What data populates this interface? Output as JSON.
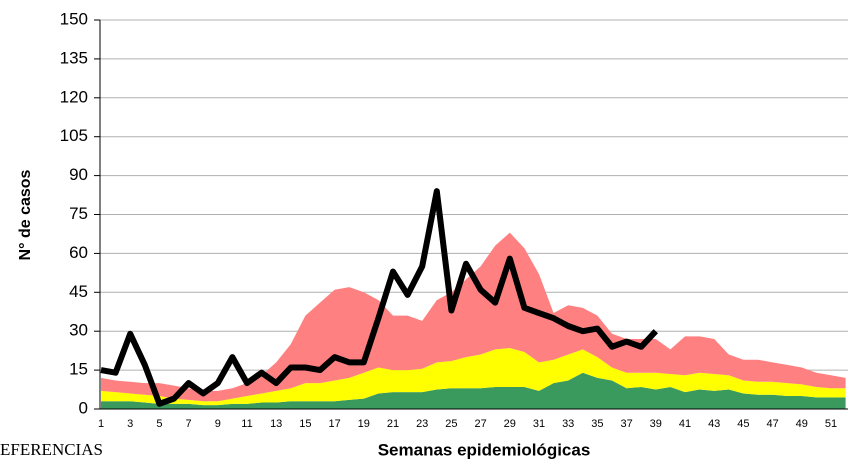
{
  "chart_data": {
    "type": "area",
    "ylabel": "N° de casos",
    "xlabel": "Semanas epidemiológicas",
    "annotation": "EFERENCIAS",
    "categories": [
      "1",
      null,
      "3",
      null,
      "5",
      null,
      "7",
      null,
      "9",
      null,
      "11",
      null,
      "13",
      null,
      "15",
      null,
      "17",
      null,
      "19",
      null,
      "21",
      null,
      "23",
      null,
      "25",
      null,
      "27",
      null,
      "29",
      null,
      "31",
      null,
      "33",
      null,
      "35",
      null,
      "37",
      null,
      "39",
      null,
      "41",
      null,
      "43",
      null,
      "45",
      null,
      "47",
      null,
      "49",
      null,
      "51",
      null
    ],
    "series": [
      {
        "color": "#3a9a5e",
        "values": [
          3,
          3,
          3,
          2.5,
          2,
          2,
          2,
          1.5,
          1.5,
          2,
          2,
          2.5,
          2.5,
          3,
          3,
          3,
          3,
          3.5,
          4,
          6,
          6.5,
          6.5,
          6.5,
          7.5,
          8,
          8,
          8,
          8.5,
          8.5,
          8.5,
          7,
          10,
          11,
          14,
          12,
          11,
          8,
          8.5,
          7.5,
          8.5,
          6.5,
          7.5,
          7,
          7.5,
          6,
          5.5,
          5.5,
          5,
          5,
          4.5,
          4.5,
          4.5
        ]
      },
      {
        "color": "#ffff00",
        "values": [
          4,
          3.5,
          3,
          3,
          3,
          2,
          1.5,
          1.5,
          1.5,
          2,
          3,
          3.5,
          4.5,
          5,
          7,
          7,
          8,
          8.5,
          10,
          10,
          8.5,
          8.5,
          9,
          10.5,
          10.5,
          12,
          13,
          14.5,
          15,
          13.5,
          11,
          9,
          10,
          9,
          8,
          5,
          6,
          5.5,
          6.5,
          5,
          6.5,
          6.5,
          6.5,
          5.5,
          5,
          5,
          5,
          5,
          4.5,
          4,
          3.5,
          3.5
        ]
      },
      {
        "color": "#ff8080",
        "values": [
          5,
          4.5,
          4.5,
          4.5,
          5,
          5,
          4.5,
          4,
          4,
          4,
          5,
          7,
          11,
          17,
          26,
          31,
          35,
          35,
          31,
          26,
          21,
          21,
          18.5,
          24,
          26.5,
          30,
          34,
          40,
          44.5,
          40,
          34,
          18,
          19,
          16,
          16,
          13,
          13,
          13,
          13,
          9.5,
          15,
          14,
          13.5,
          8,
          8,
          8.5,
          7.5,
          7,
          6.5,
          5.5,
          5,
          4
        ]
      },
      {
        "color": "#000000",
        "type": "line",
        "values": [
          15,
          14,
          29,
          17,
          2,
          4,
          10,
          6,
          10,
          20,
          10,
          14,
          10,
          16,
          16,
          15,
          20,
          18,
          18,
          35,
          53,
          44,
          55,
          84,
          38,
          56,
          46,
          41,
          58,
          39,
          37,
          35,
          32,
          30,
          31,
          24,
          26,
          24,
          30,
          null,
          null,
          null,
          null,
          null,
          null,
          null,
          null,
          null,
          null,
          null,
          null,
          null
        ]
      }
    ],
    "ylim": [
      0,
      150
    ],
    "yticks": [
      0,
      15,
      30,
      45,
      60,
      75,
      90,
      105,
      120,
      135,
      150
    ],
    "grid": true
  }
}
